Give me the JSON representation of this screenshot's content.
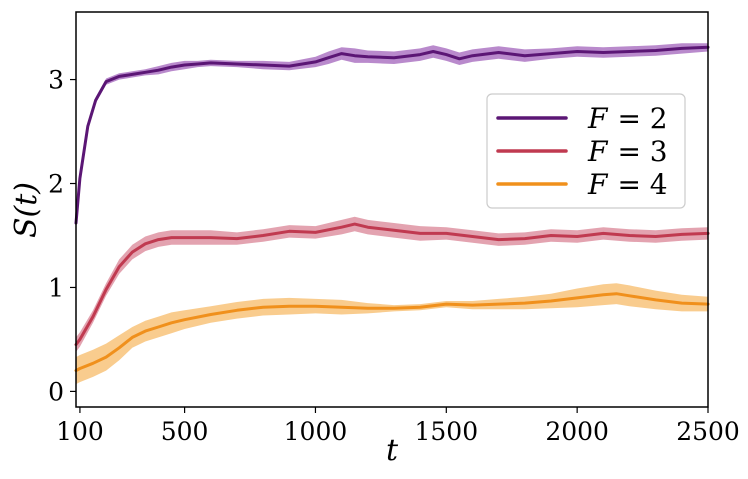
{
  "chart_data": {
    "type": "line",
    "title": "",
    "xlabel": "t",
    "ylabel": "S(t)",
    "xlim": [
      85,
      2500
    ],
    "ylim": [
      -0.15,
      3.65
    ],
    "xticks": [
      100,
      500,
      1000,
      1500,
      2000,
      2500
    ],
    "yticks": [
      0,
      1,
      2,
      3
    ],
    "x_tick_labels": [
      "100",
      "500",
      "1000",
      "1500",
      "2000",
      "2500"
    ],
    "y_tick_labels": [
      "0",
      "1",
      "2",
      "3"
    ],
    "grid": false,
    "legend_position": "right",
    "series": [
      {
        "name": "F = 2",
        "label_var": "F",
        "label_eq": "= 2",
        "color": "#5b1675",
        "band_color": "#9b59b6",
        "x": [
          85,
          100,
          130,
          160,
          200,
          250,
          300,
          350,
          400,
          450,
          500,
          550,
          600,
          700,
          800,
          900,
          1000,
          1050,
          1100,
          1150,
          1200,
          1300,
          1400,
          1450,
          1500,
          1550,
          1600,
          1700,
          1800,
          1900,
          2000,
          2100,
          2200,
          2300,
          2400,
          2500
        ],
        "y": [
          1.62,
          2.05,
          2.55,
          2.8,
          2.98,
          3.03,
          3.05,
          3.07,
          3.09,
          3.12,
          3.14,
          3.15,
          3.16,
          3.15,
          3.14,
          3.13,
          3.17,
          3.21,
          3.25,
          3.23,
          3.22,
          3.21,
          3.24,
          3.27,
          3.24,
          3.2,
          3.23,
          3.26,
          3.23,
          3.25,
          3.27,
          3.26,
          3.27,
          3.28,
          3.3,
          3.31
        ],
        "band": [
          0.02,
          0.03,
          0.03,
          0.03,
          0.03,
          0.03,
          0.03,
          0.03,
          0.04,
          0.04,
          0.04,
          0.03,
          0.03,
          0.03,
          0.04,
          0.04,
          0.05,
          0.06,
          0.06,
          0.07,
          0.06,
          0.06,
          0.06,
          0.06,
          0.06,
          0.06,
          0.06,
          0.06,
          0.06,
          0.05,
          0.05,
          0.05,
          0.05,
          0.05,
          0.05,
          0.04
        ]
      },
      {
        "name": "F = 3",
        "label_var": "F",
        "label_eq": "= 3",
        "color": "#c03a50",
        "band_color": "#d77c8e",
        "x": [
          85,
          100,
          150,
          200,
          250,
          300,
          350,
          400,
          450,
          500,
          600,
          700,
          800,
          900,
          1000,
          1100,
          1150,
          1200,
          1300,
          1400,
          1500,
          1600,
          1700,
          1800,
          1900,
          2000,
          2100,
          2200,
          2300,
          2400,
          2500
        ],
        "y": [
          0.45,
          0.5,
          0.72,
          0.98,
          1.2,
          1.34,
          1.42,
          1.46,
          1.48,
          1.48,
          1.48,
          1.47,
          1.5,
          1.54,
          1.53,
          1.58,
          1.61,
          1.58,
          1.55,
          1.52,
          1.52,
          1.49,
          1.46,
          1.47,
          1.5,
          1.49,
          1.52,
          1.5,
          1.49,
          1.51,
          1.52
        ],
        "band": [
          0.07,
          0.07,
          0.06,
          0.06,
          0.07,
          0.07,
          0.07,
          0.07,
          0.07,
          0.07,
          0.07,
          0.06,
          0.06,
          0.06,
          0.06,
          0.07,
          0.07,
          0.07,
          0.07,
          0.07,
          0.06,
          0.06,
          0.06,
          0.06,
          0.06,
          0.06,
          0.06,
          0.06,
          0.06,
          0.06,
          0.06
        ]
      },
      {
        "name": "F = 4",
        "label_var": "F",
        "label_eq": "= 4",
        "color": "#f0901c",
        "band_color": "#f7b75e",
        "x": [
          85,
          100,
          150,
          200,
          250,
          300,
          350,
          400,
          450,
          500,
          600,
          700,
          800,
          900,
          1000,
          1100,
          1200,
          1300,
          1400,
          1500,
          1600,
          1700,
          1800,
          1900,
          2000,
          2100,
          2150,
          2200,
          2300,
          2400,
          2500
        ],
        "y": [
          0.2,
          0.22,
          0.27,
          0.33,
          0.42,
          0.52,
          0.58,
          0.62,
          0.66,
          0.69,
          0.74,
          0.78,
          0.81,
          0.82,
          0.82,
          0.81,
          0.8,
          0.8,
          0.81,
          0.84,
          0.83,
          0.84,
          0.85,
          0.87,
          0.9,
          0.93,
          0.94,
          0.92,
          0.88,
          0.85,
          0.84
        ],
        "band": [
          0.13,
          0.13,
          0.13,
          0.13,
          0.12,
          0.1,
          0.1,
          0.1,
          0.1,
          0.09,
          0.08,
          0.08,
          0.08,
          0.08,
          0.07,
          0.07,
          0.05,
          0.03,
          0.03,
          0.03,
          0.04,
          0.05,
          0.06,
          0.07,
          0.09,
          0.1,
          0.1,
          0.1,
          0.09,
          0.08,
          0.07
        ]
      }
    ]
  }
}
